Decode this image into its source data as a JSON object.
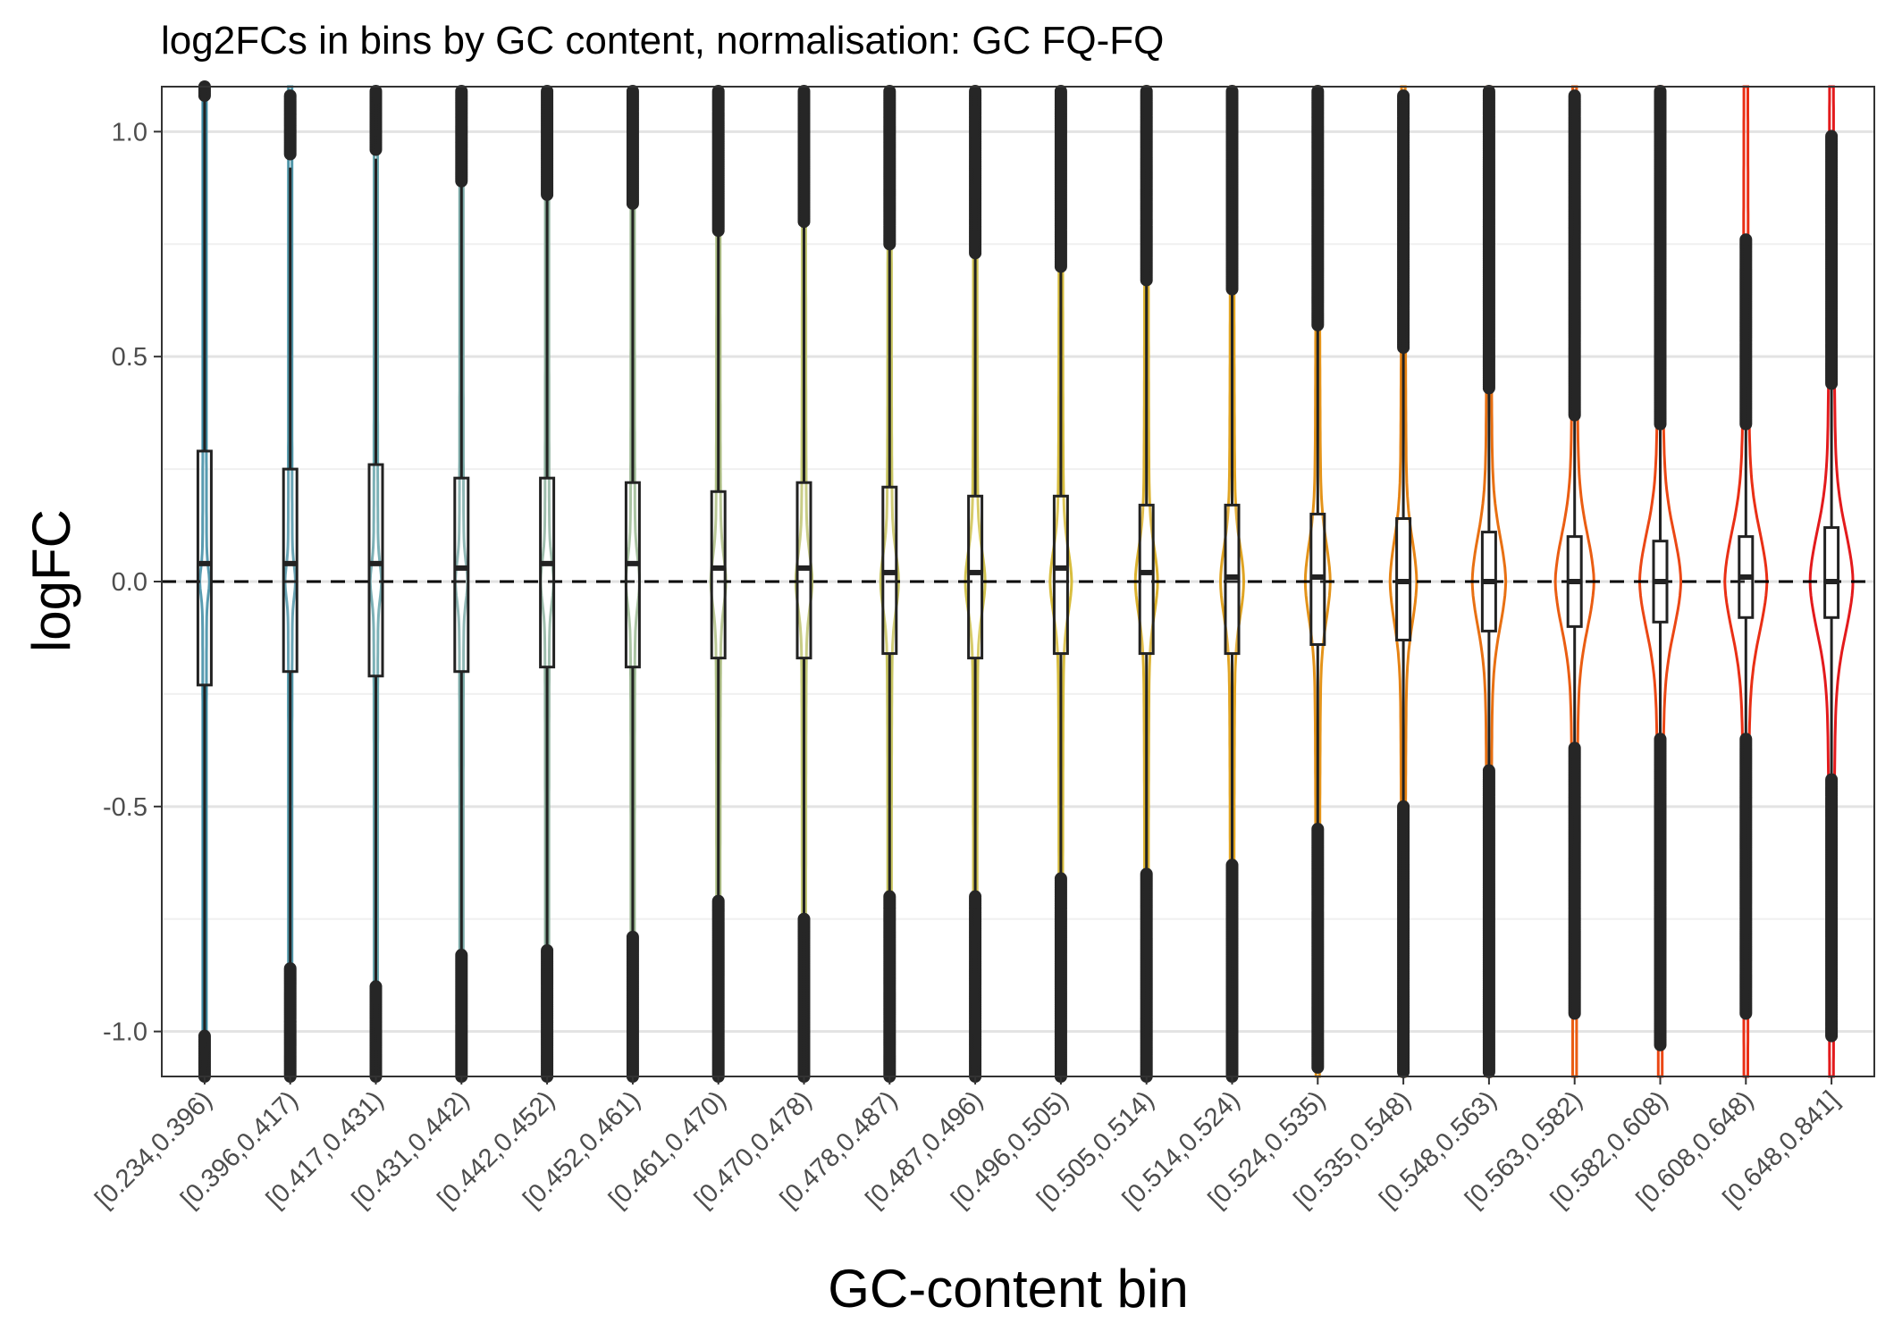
{
  "chart_data": {
    "type": "violin",
    "title": "log2FCs in bins by GC content, normalisation: GC FQ-FQ",
    "xlabel": "GC-content bin",
    "ylabel": "logFC",
    "ylim": [
      -1.1,
      1.1
    ],
    "yticks": [
      1.0,
      0.5,
      0.0,
      -0.5,
      -1.0
    ],
    "ytick_labels": [
      "1.0",
      "0.5",
      "0.0",
      "-0.5",
      "-1.0"
    ],
    "reference_line": {
      "y": 0,
      "style": "dashed",
      "color": "#000000"
    },
    "grid": true,
    "legend": "none",
    "categories": [
      "[0.234,0.396)",
      "[0.396,0.417)",
      "[0.417,0.431)",
      "[0.431,0.442)",
      "[0.442,0.452)",
      "[0.452,0.461)",
      "[0.461,0.470)",
      "[0.470,0.478)",
      "[0.478,0.487)",
      "[0.487,0.496)",
      "[0.496,0.505)",
      "[0.505,0.514)",
      "[0.514,0.524)",
      "[0.524,0.535)",
      "[0.535,0.548)",
      "[0.548,0.563)",
      "[0.563,0.582)",
      "[0.582,0.608)",
      "[0.608,0.648)",
      "[0.648,0.841]"
    ],
    "colors": [
      "#3b8aa3",
      "#4f95a8",
      "#66a3aa",
      "#7dacaa",
      "#8fb3a0",
      "#9cba93",
      "#aebf85",
      "#bfc473",
      "#c8c561",
      "#d0c24f",
      "#d8bd3d",
      "#dcb22e",
      "#e0a422",
      "#e39319",
      "#e68314",
      "#e87012",
      "#ea5d12",
      "#eb4714",
      "#e92f15",
      "#e31a1c"
    ],
    "boxes": [
      {
        "q1": -0.23,
        "median": 0.04,
        "q3": 0.29
      },
      {
        "q1": -0.2,
        "median": 0.04,
        "q3": 0.25
      },
      {
        "q1": -0.21,
        "median": 0.04,
        "q3": 0.26
      },
      {
        "q1": -0.2,
        "median": 0.03,
        "q3": 0.23
      },
      {
        "q1": -0.19,
        "median": 0.04,
        "q3": 0.23
      },
      {
        "q1": -0.19,
        "median": 0.04,
        "q3": 0.22
      },
      {
        "q1": -0.17,
        "median": 0.03,
        "q3": 0.2
      },
      {
        "q1": -0.17,
        "median": 0.03,
        "q3": 0.22
      },
      {
        "q1": -0.16,
        "median": 0.02,
        "q3": 0.21
      },
      {
        "q1": -0.17,
        "median": 0.02,
        "q3": 0.19
      },
      {
        "q1": -0.16,
        "median": 0.03,
        "q3": 0.19
      },
      {
        "q1": -0.16,
        "median": 0.02,
        "q3": 0.17
      },
      {
        "q1": -0.16,
        "median": 0.01,
        "q3": 0.17
      },
      {
        "q1": -0.14,
        "median": 0.01,
        "q3": 0.15
      },
      {
        "q1": -0.13,
        "median": 0.0,
        "q3": 0.14
      },
      {
        "q1": -0.11,
        "median": 0.0,
        "q3": 0.11
      },
      {
        "q1": -0.1,
        "median": 0.0,
        "q3": 0.1
      },
      {
        "q1": -0.09,
        "median": 0.0,
        "q3": 0.09
      },
      {
        "q1": -0.08,
        "median": 0.01,
        "q3": 0.1
      },
      {
        "q1": -0.08,
        "median": 0.0,
        "q3": 0.12
      }
    ],
    "whiskers": [
      {
        "low": -1.1,
        "high": 1.1
      },
      {
        "low": -0.86,
        "high": 0.92
      },
      {
        "low": -0.9,
        "high": 0.94
      },
      {
        "low": -0.83,
        "high": 0.88
      },
      {
        "low": -0.82,
        "high": 0.86
      },
      {
        "low": -0.79,
        "high": 0.84
      },
      {
        "low": -0.71,
        "high": 0.78
      },
      {
        "low": -0.75,
        "high": 0.8
      },
      {
        "low": -0.7,
        "high": 0.75
      },
      {
        "low": -0.7,
        "high": 0.73
      },
      {
        "low": -0.66,
        "high": 0.69
      },
      {
        "low": -0.65,
        "high": 0.67
      },
      {
        "low": -0.63,
        "high": 0.65
      },
      {
        "low": -0.55,
        "high": 0.58
      },
      {
        "low": -0.5,
        "high": 0.53
      },
      {
        "low": -0.42,
        "high": 0.43
      },
      {
        "low": -0.37,
        "high": 0.38
      },
      {
        "low": -0.35,
        "high": 0.35
      },
      {
        "low": -0.35,
        "high": 0.36
      },
      {
        "low": -0.44,
        "high": 0.45
      }
    ],
    "violin_spread": [
      0.03,
      0.034,
      0.038,
      0.042,
      0.046,
      0.05,
      0.055,
      0.058,
      0.062,
      0.066,
      0.07,
      0.074,
      0.078,
      0.085,
      0.09,
      0.098,
      0.103,
      0.107,
      0.11,
      0.112
    ],
    "violin_width": [
      0.035,
      0.04,
      0.045,
      0.05,
      0.055,
      0.06,
      0.068,
      0.075,
      0.085,
      0.095,
      0.105,
      0.11,
      0.115,
      0.125,
      0.135,
      0.175,
      0.205,
      0.22,
      0.225,
      0.23
    ],
    "outliers_upper": [
      [
        1.08,
        1.1
      ],
      [
        0.95,
        1.08
      ],
      [
        0.96,
        1.09
      ],
      [
        0.89,
        1.09
      ],
      [
        0.86,
        1.09
      ],
      [
        0.84,
        1.09
      ],
      [
        0.78,
        1.09
      ],
      [
        0.8,
        1.09
      ],
      [
        0.75,
        1.09
      ],
      [
        0.73,
        1.09
      ],
      [
        0.7,
        1.09
      ],
      [
        0.67,
        1.09
      ],
      [
        0.65,
        1.09
      ],
      [
        0.57,
        1.09
      ],
      [
        0.52,
        1.08
      ],
      [
        0.43,
        1.09
      ],
      [
        0.37,
        1.08
      ],
      [
        0.35,
        1.09
      ],
      [
        0.35,
        0.76
      ],
      [
        0.44,
        0.99
      ]
    ],
    "outliers_lower": [
      [
        -1.1,
        -1.01
      ],
      [
        -1.1,
        -0.86
      ],
      [
        -1.1,
        -0.9
      ],
      [
        -1.1,
        -0.83
      ],
      [
        -1.1,
        -0.82
      ],
      [
        -1.1,
        -0.79
      ],
      [
        -1.1,
        -0.71
      ],
      [
        -1.1,
        -0.75
      ],
      [
        -1.1,
        -0.7
      ],
      [
        -1.1,
        -0.7
      ],
      [
        -1.1,
        -0.66
      ],
      [
        -1.1,
        -0.65
      ],
      [
        -1.1,
        -0.63
      ],
      [
        -1.08,
        -0.55
      ],
      [
        -1.09,
        -0.5
      ],
      [
        -1.09,
        -0.42
      ],
      [
        -0.96,
        -0.37
      ],
      [
        -1.03,
        -0.35
      ],
      [
        -0.96,
        -0.35
      ],
      [
        -1.01,
        -0.44
      ]
    ]
  }
}
